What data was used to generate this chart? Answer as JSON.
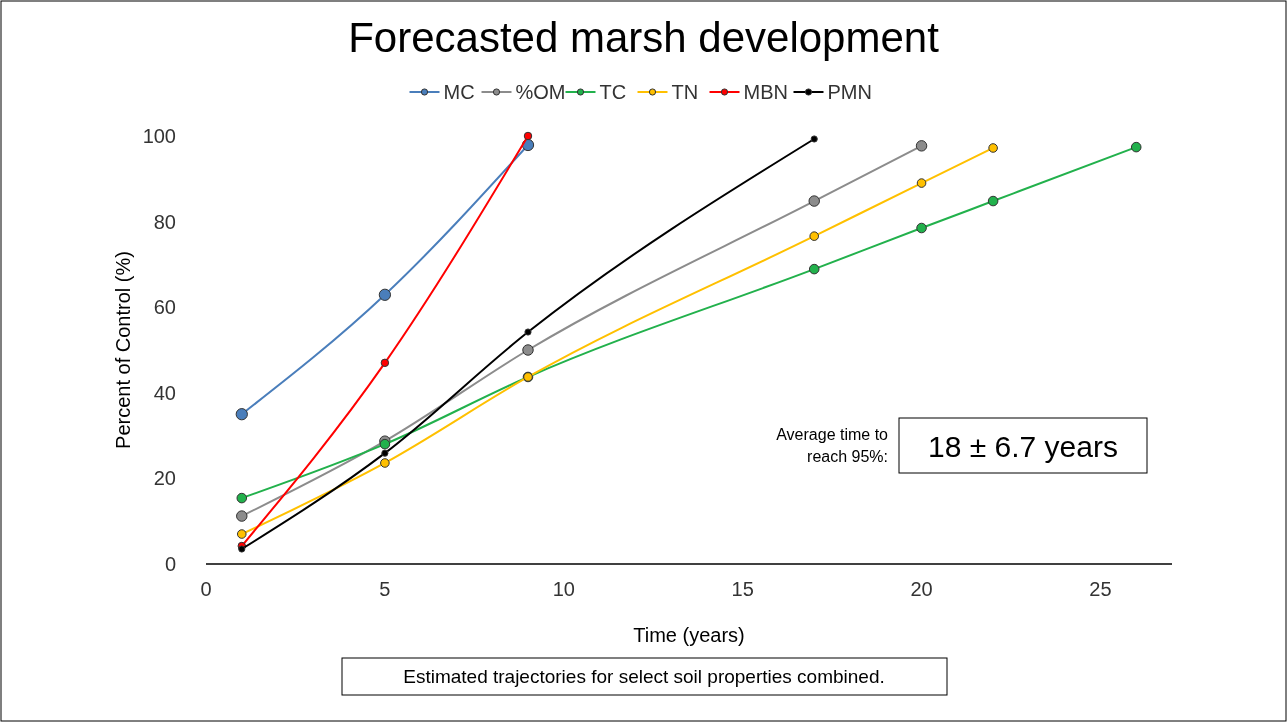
{
  "chart_data": {
    "type": "line",
    "title": "Forecasted marsh development",
    "xlabel": "Time (years)",
    "ylabel": "Percent of Control (%)",
    "xlim": [
      0,
      27
    ],
    "xticks": [
      0,
      5,
      10,
      15,
      20,
      25
    ],
    "ylim": [
      0,
      100
    ],
    "yticks": [
      0,
      20,
      40,
      60,
      80,
      100
    ],
    "grid": false,
    "legend": "top",
    "marker": "circle",
    "line_style": "solid",
    "series": [
      {
        "name": "MC",
        "color": "#4a7ebb",
        "x": [
          1,
          5,
          9
        ],
        "values": [
          35,
          62.9,
          97.9
        ]
      },
      {
        "name": "%OM",
        "color": "#8c8c8c",
        "x": [
          1,
          5,
          9,
          17,
          20
        ],
        "values": [
          11.2,
          28.7,
          50,
          84.8,
          97.7
        ]
      },
      {
        "name": "TC",
        "color": "#22b14c",
        "x": [
          1,
          5,
          9,
          17,
          20,
          22,
          26
        ],
        "values": [
          15.4,
          28,
          43.7,
          68.9,
          78.5,
          84.8,
          97.4
        ]
      },
      {
        "name": "TN",
        "color": "#ffc000",
        "x": [
          1,
          5,
          9,
          17,
          20,
          22
        ],
        "values": [
          7,
          23.6,
          43.7,
          76.6,
          89,
          97.2
        ]
      },
      {
        "name": "MBN",
        "color": "#ff0000",
        "x": [
          1,
          5,
          9
        ],
        "values": [
          4.2,
          47,
          100
        ]
      },
      {
        "name": "PMN",
        "color": "#000000",
        "x": [
          1,
          5,
          9,
          17
        ],
        "values": [
          3.5,
          25.9,
          54.2,
          99.3
        ]
      }
    ],
    "annotations": [
      "Average time to reach 95%:",
      "18 ± 6.7 years",
      "Estimated trajectories for select soil properties combined."
    ]
  }
}
